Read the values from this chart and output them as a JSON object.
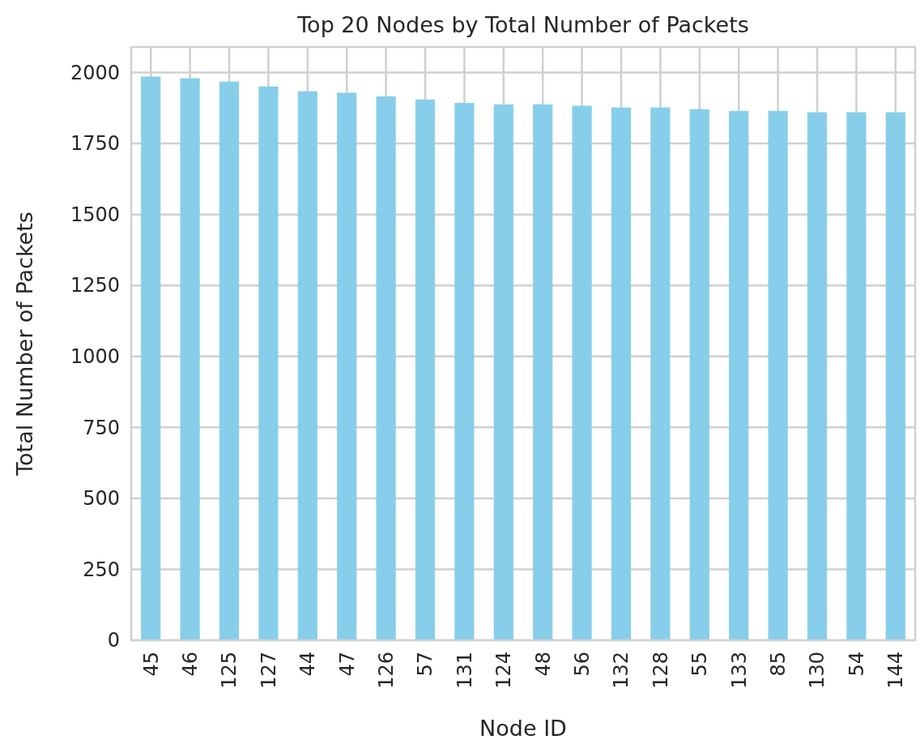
{
  "chart_data": {
    "type": "bar",
    "title": "Top 20 Nodes by Total Number of Packets",
    "xlabel": "Node ID",
    "ylabel": "Total Number of Packets",
    "categories": [
      "45",
      "46",
      "125",
      "127",
      "44",
      "47",
      "126",
      "57",
      "131",
      "124",
      "48",
      "56",
      "132",
      "128",
      "55",
      "133",
      "85",
      "130",
      "54",
      "144"
    ],
    "values": [
      1986,
      1980,
      1968,
      1951,
      1934,
      1929,
      1916,
      1905,
      1893,
      1888,
      1888,
      1883,
      1877,
      1877,
      1871,
      1865,
      1865,
      1860,
      1860,
      1860
    ],
    "color": "#87ceeb",
    "ylim": [
      0,
      2090
    ],
    "yticks": [
      0,
      250,
      500,
      750,
      1000,
      1250,
      1500,
      1750,
      2000
    ],
    "grid": true
  }
}
